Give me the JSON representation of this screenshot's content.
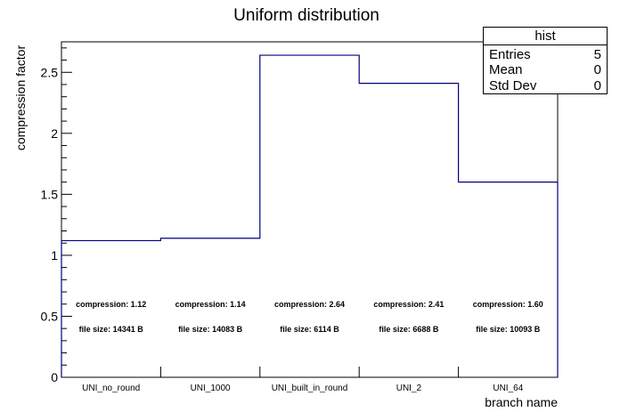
{
  "chart_data": {
    "type": "bar",
    "title": "Uniform distribution",
    "xlabel": "branch name",
    "ylabel": "compression factor",
    "categories": [
      "UNI_no_round",
      "UNI_1000",
      "UNI_built_in_round",
      "UNI_2",
      "UNI_64"
    ],
    "values": [
      1.12,
      1.14,
      2.64,
      2.41,
      1.6
    ],
    "ylim": [
      0,
      2.75
    ],
    "y_ticks": [
      "0",
      "0.5",
      "1",
      "1.5",
      "2",
      "2.5"
    ],
    "line_color": "#000080",
    "annotations": [
      {
        "compression": "compression: 1.12",
        "size": "file size: 14341 B"
      },
      {
        "compression": "compression: 1.14",
        "size": "file size: 14083 B"
      },
      {
        "compression": "compression: 2.64",
        "size": "file size: 6114 B"
      },
      {
        "compression": "compression: 2.41",
        "size": "file size: 6688 B"
      },
      {
        "compression": "compression: 1.60",
        "size": "file size: 10093 B"
      }
    ],
    "grid": false,
    "legend": "top-right"
  },
  "stats": {
    "title": "hist",
    "rows": [
      {
        "label": "Entries",
        "value": "5"
      },
      {
        "label": "Mean",
        "value": "0"
      },
      {
        "label": "Std Dev",
        "value": "0"
      }
    ]
  }
}
